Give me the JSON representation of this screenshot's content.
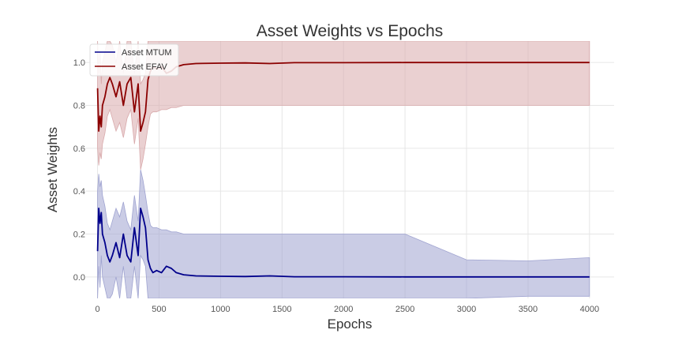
{
  "chart_data": {
    "type": "line",
    "title": "Asset Weights vs Epochs",
    "xlabel": "Epochs",
    "ylabel": "Asset Weights",
    "xlim": [
      -100,
      4200
    ],
    "ylim": [
      -0.1,
      1.1
    ],
    "xticks": [
      0,
      500,
      1000,
      1500,
      2000,
      2500,
      3000,
      3500,
      4000
    ],
    "xtick_labels": [
      "0",
      "500",
      "1000",
      "1500",
      "2000",
      "2500",
      "3000",
      "3500",
      "4000"
    ],
    "yticks": [
      0.0,
      0.2,
      0.4,
      0.6,
      0.8,
      1.0
    ],
    "ytick_labels": [
      "0.0",
      "0.2",
      "0.4",
      "0.6",
      "0.8",
      "1.0"
    ],
    "grid": true,
    "legend_position": "top-left",
    "series": [
      {
        "name": "Asset MTUM",
        "color": "#00008b",
        "band_color": "#9fa3d0",
        "x": [
          0,
          10,
          20,
          30,
          40,
          60,
          80,
          100,
          120,
          150,
          180,
          210,
          240,
          270,
          300,
          330,
          350,
          370,
          390,
          410,
          430,
          450,
          480,
          520,
          560,
          600,
          640,
          700,
          800,
          1000,
          1200,
          1400,
          1600,
          2000,
          2500,
          3000,
          3500,
          4000
        ],
        "values": [
          0.12,
          0.32,
          0.25,
          0.3,
          0.2,
          0.16,
          0.1,
          0.07,
          0.1,
          0.16,
          0.09,
          0.2,
          0.1,
          0.07,
          0.23,
          0.1,
          0.32,
          0.28,
          0.23,
          0.08,
          0.04,
          0.02,
          0.03,
          0.02,
          0.05,
          0.04,
          0.02,
          0.01,
          0.005,
          0.003,
          0.002,
          0.005,
          0.001,
          0.001,
          0.0,
          0.0,
          0.0,
          0.0
        ],
        "band_upper": [
          0.4,
          0.48,
          0.42,
          0.45,
          0.38,
          0.33,
          0.25,
          0.22,
          0.26,
          0.32,
          0.28,
          0.35,
          0.26,
          0.22,
          0.38,
          0.26,
          0.5,
          0.45,
          0.38,
          0.3,
          0.24,
          0.23,
          0.23,
          0.22,
          0.22,
          0.21,
          0.21,
          0.2,
          0.2,
          0.2,
          0.2,
          0.2,
          0.2,
          0.2,
          0.2,
          0.08,
          0.075,
          0.09
        ],
        "band_lower": [
          -0.1,
          0.05,
          -0.05,
          0.1,
          0.0,
          -0.05,
          -0.1,
          -0.1,
          -0.08,
          0.0,
          -0.1,
          0.05,
          -0.1,
          -0.1,
          0.05,
          -0.1,
          0.1,
          0.08,
          0.05,
          -0.1,
          -0.1,
          -0.1,
          -0.1,
          -0.1,
          -0.1,
          -0.1,
          -0.1,
          -0.1,
          -0.1,
          -0.1,
          -0.1,
          -0.1,
          -0.1,
          -0.1,
          -0.1,
          -0.1,
          -0.09,
          -0.09
        ]
      },
      {
        "name": "Asset EFAV",
        "color": "#8b0000",
        "band_color": "#d8a9ab",
        "x": [
          0,
          10,
          20,
          30,
          40,
          60,
          80,
          100,
          120,
          150,
          180,
          210,
          240,
          270,
          300,
          330,
          350,
          370,
          390,
          410,
          430,
          450,
          480,
          520,
          560,
          600,
          640,
          700,
          800,
          1000,
          1200,
          1400,
          1600,
          2000,
          2500,
          3000,
          3500,
          4000
        ],
        "values": [
          0.88,
          0.68,
          0.75,
          0.7,
          0.8,
          0.84,
          0.9,
          0.93,
          0.9,
          0.84,
          0.91,
          0.8,
          0.9,
          0.93,
          0.77,
          0.9,
          0.68,
          0.72,
          0.77,
          0.92,
          0.96,
          0.98,
          0.97,
          0.98,
          0.95,
          0.96,
          0.98,
          0.99,
          0.995,
          0.997,
          0.998,
          0.995,
          0.999,
          0.999,
          1.0,
          1.0,
          1.0,
          1.0
        ],
        "band_upper": [
          1.1,
          0.95,
          1.05,
          0.9,
          1.0,
          1.05,
          1.1,
          1.1,
          1.08,
          1.0,
          1.1,
          0.95,
          1.1,
          1.1,
          0.95,
          1.1,
          0.9,
          0.92,
          0.95,
          1.1,
          1.1,
          1.1,
          1.1,
          1.1,
          1.1,
          1.1,
          1.1,
          1.1,
          1.1,
          1.1,
          1.1,
          1.1,
          1.1,
          1.1,
          1.1,
          1.1,
          1.1,
          1.1
        ],
        "band_lower": [
          0.6,
          0.52,
          0.58,
          0.55,
          0.62,
          0.67,
          0.75,
          0.78,
          0.74,
          0.68,
          0.72,
          0.65,
          0.74,
          0.78,
          0.62,
          0.74,
          0.5,
          0.55,
          0.62,
          0.7,
          0.76,
          0.77,
          0.77,
          0.78,
          0.78,
          0.79,
          0.79,
          0.8,
          0.8,
          0.8,
          0.8,
          0.8,
          0.8,
          0.8,
          0.8,
          0.8,
          0.8,
          0.8
        ]
      }
    ]
  }
}
